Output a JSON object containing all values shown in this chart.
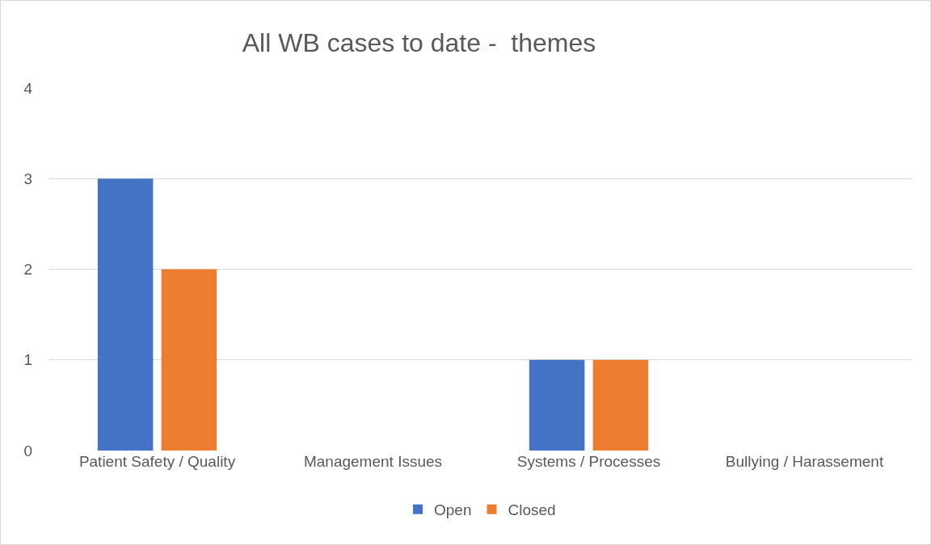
{
  "chart_data": {
    "type": "bar",
    "title": "All WB cases to date -  themes",
    "categories": [
      "Patient Safety / Quality",
      "Management Issues",
      "Systems / Processes",
      "Bullying / Harassement"
    ],
    "series": [
      {
        "name": "Open",
        "color": "#4472c4",
        "values": [
          3,
          0,
          1,
          0
        ]
      },
      {
        "name": "Closed",
        "color": "#ed7d31",
        "values": [
          2,
          0,
          1,
          0
        ]
      }
    ],
    "ylim": [
      0,
      4
    ],
    "yticks": [
      0,
      1,
      2,
      3,
      4
    ],
    "grid": "y",
    "legend": "bottom"
  }
}
